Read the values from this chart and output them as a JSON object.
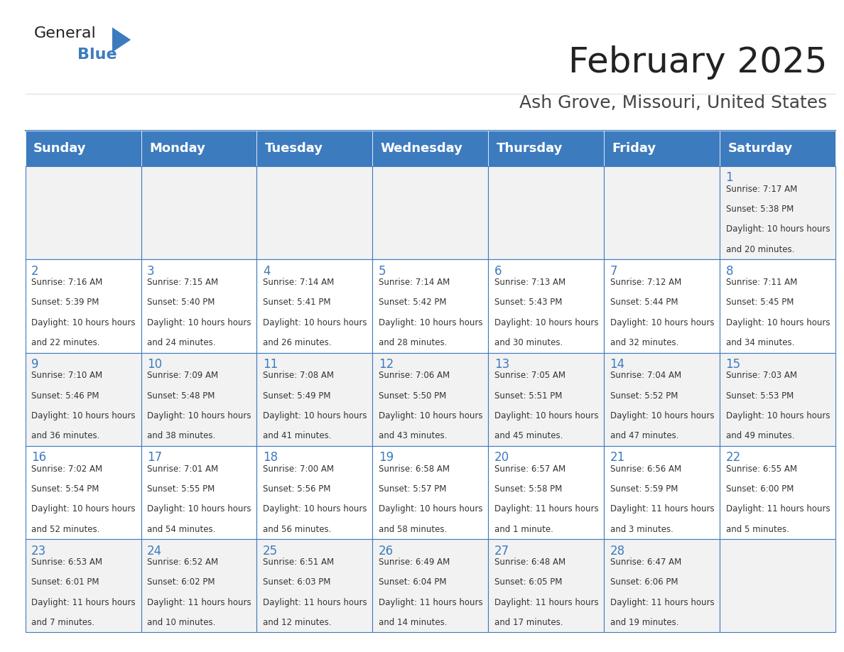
{
  "title": "February 2025",
  "subtitle": "Ash Grove, Missouri, United States",
  "header_bg_color": "#3D7BBF",
  "header_text_color": "#FFFFFF",
  "days_of_week": [
    "Sunday",
    "Monday",
    "Tuesday",
    "Wednesday",
    "Thursday",
    "Friday",
    "Saturday"
  ],
  "row_bg_even": "#F2F2F2",
  "row_bg_odd": "#FFFFFF",
  "cell_border_color": "#3D7BBF",
  "day_number_color": "#3D7BBF",
  "cell_text_color": "#333333",
  "title_color": "#222222",
  "subtitle_color": "#444444",
  "logo_general_color": "#222222",
  "logo_blue_color": "#3D7BBF",
  "calendar_data": [
    [
      null,
      null,
      null,
      null,
      null,
      null,
      {
        "day": 1,
        "sunrise": "7:17 AM",
        "sunset": "5:38 PM",
        "daylight": "10 hours and 20 minutes."
      }
    ],
    [
      {
        "day": 2,
        "sunrise": "7:16 AM",
        "sunset": "5:39 PM",
        "daylight": "10 hours and 22 minutes."
      },
      {
        "day": 3,
        "sunrise": "7:15 AM",
        "sunset": "5:40 PM",
        "daylight": "10 hours and 24 minutes."
      },
      {
        "day": 4,
        "sunrise": "7:14 AM",
        "sunset": "5:41 PM",
        "daylight": "10 hours and 26 minutes."
      },
      {
        "day": 5,
        "sunrise": "7:14 AM",
        "sunset": "5:42 PM",
        "daylight": "10 hours and 28 minutes."
      },
      {
        "day": 6,
        "sunrise": "7:13 AM",
        "sunset": "5:43 PM",
        "daylight": "10 hours and 30 minutes."
      },
      {
        "day": 7,
        "sunrise": "7:12 AM",
        "sunset": "5:44 PM",
        "daylight": "10 hours and 32 minutes."
      },
      {
        "day": 8,
        "sunrise": "7:11 AM",
        "sunset": "5:45 PM",
        "daylight": "10 hours and 34 minutes."
      }
    ],
    [
      {
        "day": 9,
        "sunrise": "7:10 AM",
        "sunset": "5:46 PM",
        "daylight": "10 hours and 36 minutes."
      },
      {
        "day": 10,
        "sunrise": "7:09 AM",
        "sunset": "5:48 PM",
        "daylight": "10 hours and 38 minutes."
      },
      {
        "day": 11,
        "sunrise": "7:08 AM",
        "sunset": "5:49 PM",
        "daylight": "10 hours and 41 minutes."
      },
      {
        "day": 12,
        "sunrise": "7:06 AM",
        "sunset": "5:50 PM",
        "daylight": "10 hours and 43 minutes."
      },
      {
        "day": 13,
        "sunrise": "7:05 AM",
        "sunset": "5:51 PM",
        "daylight": "10 hours and 45 minutes."
      },
      {
        "day": 14,
        "sunrise": "7:04 AM",
        "sunset": "5:52 PM",
        "daylight": "10 hours and 47 minutes."
      },
      {
        "day": 15,
        "sunrise": "7:03 AM",
        "sunset": "5:53 PM",
        "daylight": "10 hours and 49 minutes."
      }
    ],
    [
      {
        "day": 16,
        "sunrise": "7:02 AM",
        "sunset": "5:54 PM",
        "daylight": "10 hours and 52 minutes."
      },
      {
        "day": 17,
        "sunrise": "7:01 AM",
        "sunset": "5:55 PM",
        "daylight": "10 hours and 54 minutes."
      },
      {
        "day": 18,
        "sunrise": "7:00 AM",
        "sunset": "5:56 PM",
        "daylight": "10 hours and 56 minutes."
      },
      {
        "day": 19,
        "sunrise": "6:58 AM",
        "sunset": "5:57 PM",
        "daylight": "10 hours and 58 minutes."
      },
      {
        "day": 20,
        "sunrise": "6:57 AM",
        "sunset": "5:58 PM",
        "daylight": "11 hours and 1 minute."
      },
      {
        "day": 21,
        "sunrise": "6:56 AM",
        "sunset": "5:59 PM",
        "daylight": "11 hours and 3 minutes."
      },
      {
        "day": 22,
        "sunrise": "6:55 AM",
        "sunset": "6:00 PM",
        "daylight": "11 hours and 5 minutes."
      }
    ],
    [
      {
        "day": 23,
        "sunrise": "6:53 AM",
        "sunset": "6:01 PM",
        "daylight": "11 hours and 7 minutes."
      },
      {
        "day": 24,
        "sunrise": "6:52 AM",
        "sunset": "6:02 PM",
        "daylight": "11 hours and 10 minutes."
      },
      {
        "day": 25,
        "sunrise": "6:51 AM",
        "sunset": "6:03 PM",
        "daylight": "11 hours and 12 minutes."
      },
      {
        "day": 26,
        "sunrise": "6:49 AM",
        "sunset": "6:04 PM",
        "daylight": "11 hours and 14 minutes."
      },
      {
        "day": 27,
        "sunrise": "6:48 AM",
        "sunset": "6:05 PM",
        "daylight": "11 hours and 17 minutes."
      },
      {
        "day": 28,
        "sunrise": "6:47 AM",
        "sunset": "6:06 PM",
        "daylight": "11 hours and 19 minutes."
      },
      null
    ]
  ],
  "fig_width": 11.88,
  "fig_height": 9.18,
  "header_fontsize": 13,
  "title_fontsize": 36,
  "subtitle_fontsize": 18,
  "day_number_fontsize": 12,
  "cell_text_fontsize": 8.5
}
